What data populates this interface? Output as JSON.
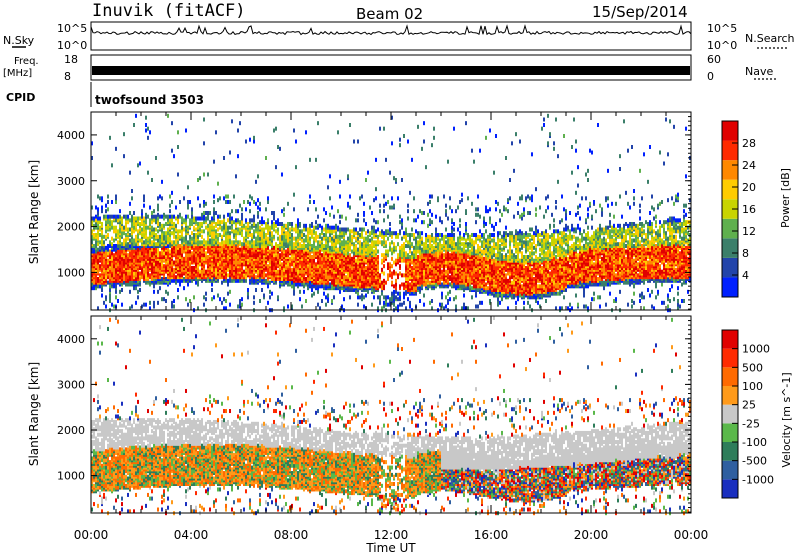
{
  "header": {
    "station": "Inuvik (fitACF)",
    "beam": "Beam 02",
    "date": "15/Sep/2014"
  },
  "panels": {
    "nsky": {
      "label": "N.Sky",
      "tick_top": "10^5",
      "tick_bottom": "10^0",
      "right_top": "10^5",
      "right_bottom": "10^0",
      "right_label": "N.Search"
    },
    "freq": {
      "label_line1": "Freq.",
      "label_line2": "[MHz]",
      "tick_top": "18",
      "tick_bottom": "8",
      "right_top": "60",
      "right_bottom": "0",
      "right_label": "Nave"
    },
    "cpid": {
      "label": "CPID",
      "value": "twofsound 3503"
    }
  },
  "chart_data": [
    {
      "type": "heatmap",
      "name_text": "power",
      "ylabel": "Slant Range [km]",
      "xlabel": "Time UT",
      "x_range": [
        "00:00",
        "24:00"
      ],
      "x_ticks": [
        "00:00",
        "04:00",
        "08:00",
        "12:00",
        "16:00",
        "20:00",
        "00:00"
      ],
      "ylim": [
        180,
        4500
      ],
      "y_ticks": [
        1000,
        2000,
        3000,
        4000
      ],
      "colorbar": {
        "label": "Power [dB]",
        "ticks": [
          4,
          8,
          12,
          16,
          20,
          24,
          28
        ],
        "range": [
          0,
          32
        ],
        "colors": [
          "#0020ff",
          "#2244aa",
          "#3b7f6a",
          "#5fb04e",
          "#c8d400",
          "#ffcc00",
          "#ff8800",
          "#ff2a00",
          "#e00000"
        ]
      }
    },
    {
      "type": "heatmap",
      "name_text": "velocity",
      "ylabel": "Slant Range [km]",
      "xlabel": "Time UT",
      "x_range": [
        "00:00",
        "24:00"
      ],
      "x_ticks": [
        "00:00",
        "04:00",
        "08:00",
        "12:00",
        "16:00",
        "20:00",
        "00:00"
      ],
      "ylim": [
        180,
        4500
      ],
      "y_ticks": [
        1000,
        2000,
        3000,
        4000
      ],
      "colorbar": {
        "label": "Velocity [m s^-1]",
        "tick_labels": [
          "1000",
          "500",
          "100",
          "25",
          "-25",
          "-100",
          "-500",
          "-1000"
        ],
        "colors": [
          "#1a2fbf",
          "#2f5fa0",
          "#2e7d5a",
          "#5ab84a",
          "#c8c8c8",
          "#ff9a1a",
          "#ff6a00",
          "#ff2a00",
          "#e00000"
        ]
      }
    }
  ]
}
